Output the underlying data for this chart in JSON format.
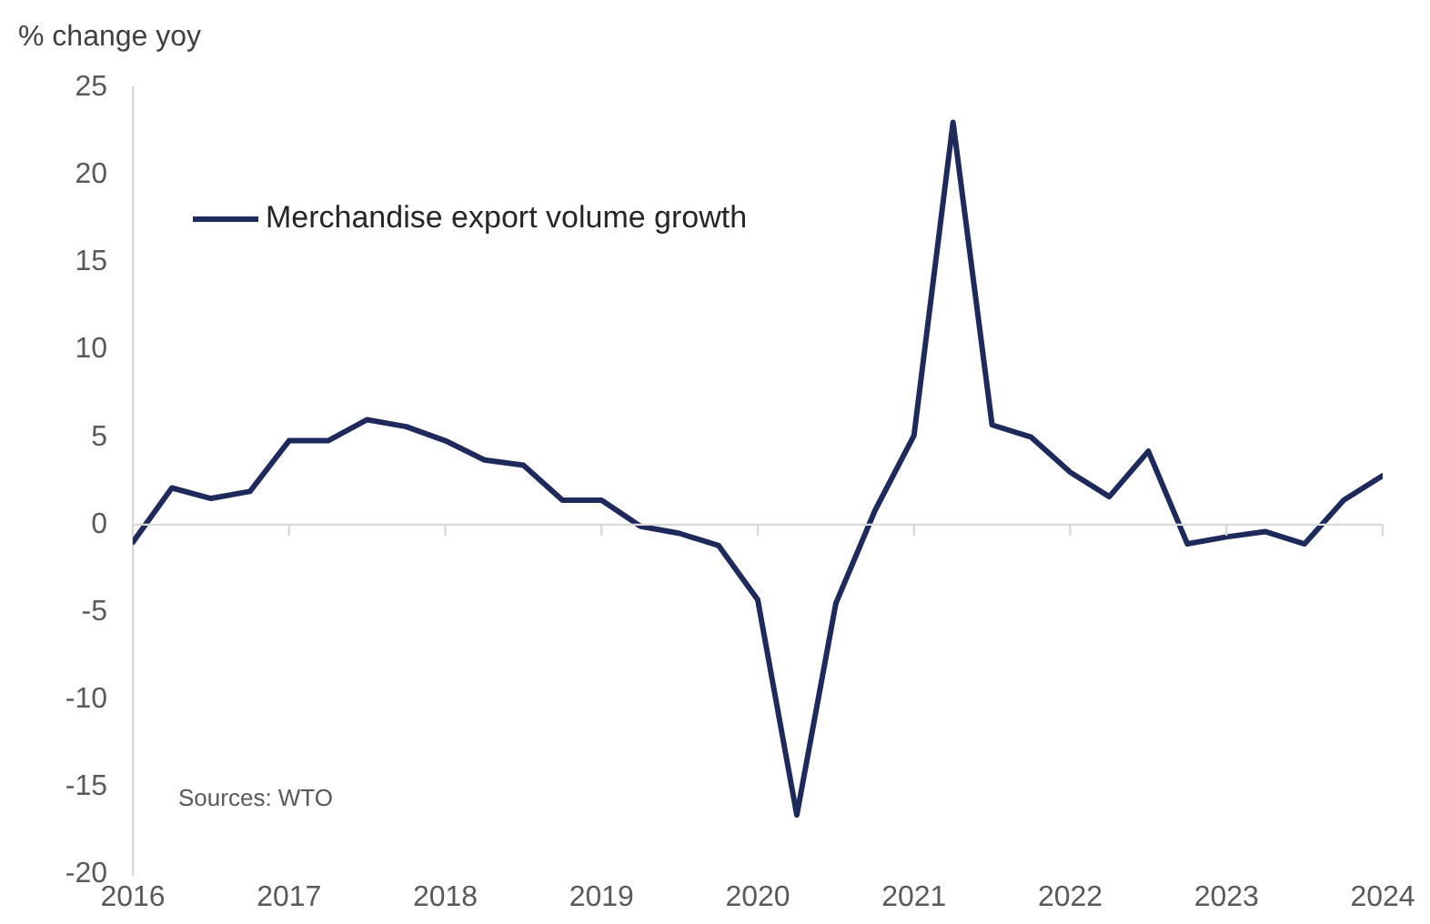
{
  "chart_data": {
    "type": "line",
    "ylabel": "% change yoy",
    "legend": "top left",
    "annotations": [
      "Sources: WTO"
    ],
    "x": [
      2016,
      2016.25,
      2016.5,
      2016.75,
      2017,
      2017.25,
      2017.5,
      2017.75,
      2018,
      2018.25,
      2018.5,
      2018.75,
      2019,
      2019.25,
      2019.5,
      2019.75,
      2020,
      2020.25,
      2020.5,
      2020.75,
      2021,
      2021.25,
      2021.5,
      2021.75,
      2022,
      2022.25,
      2022.5,
      2022.75,
      2023,
      2023.25,
      2023.5,
      2023.75,
      2024
    ],
    "series": [
      {
        "name": "Merchandise export volume growth",
        "color": "#1f2a5c",
        "values": [
          -1.0,
          2.1,
          1.5,
          1.9,
          4.8,
          4.8,
          6.0,
          5.6,
          4.8,
          3.7,
          3.4,
          1.4,
          1.4,
          -0.1,
          -0.5,
          -1.2,
          -4.3,
          -16.6,
          -4.5,
          0.8,
          5.1,
          23.0,
          5.7,
          5.0,
          3.0,
          1.6,
          4.2,
          -1.1,
          -0.7,
          -0.4,
          -1.1,
          1.4,
          2.8
        ]
      }
    ],
    "xlim": [
      2016,
      2024
    ],
    "xticks": [
      2016,
      2017,
      2018,
      2019,
      2020,
      2021,
      2022,
      2023,
      2024
    ],
    "ylim": [
      -20,
      25
    ],
    "yticks": [
      -20,
      -15,
      -10,
      -5,
      0,
      5,
      10,
      15,
      20,
      25
    ],
    "ref_lines": [
      {
        "axis": "y",
        "value": 0,
        "color": "#d9d9d9"
      }
    ],
    "grid": false,
    "marker": "none",
    "line_style": "solid"
  }
}
